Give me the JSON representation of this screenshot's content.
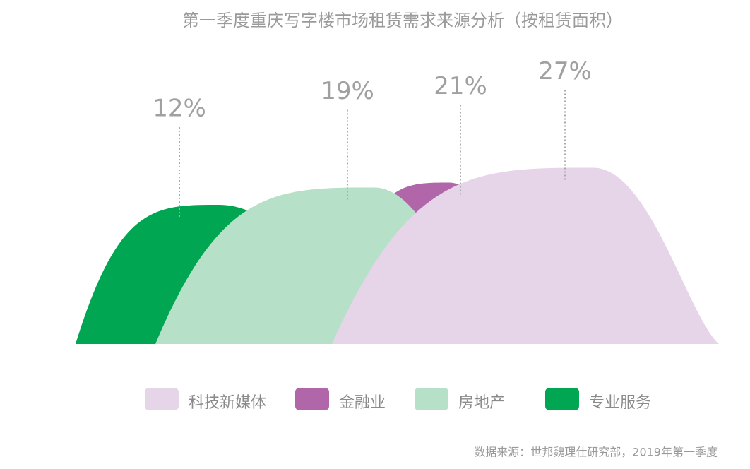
{
  "chart_data": {
    "type": "hill",
    "title": "第一季度重庆写字楼市场租赁需求来源分析（按租赁面积）",
    "categories": [
      "科技新媒体",
      "金融业",
      "房地产",
      "专业服务"
    ],
    "values": [
      27,
      21,
      19,
      12
    ],
    "value_labels": [
      "27%",
      "21%",
      "19%",
      "12%"
    ],
    "colors": [
      "#e6d4e8",
      "#b066a8",
      "#b6e0c7",
      "#00a651"
    ],
    "source": "数据来源：世邦魏理仕研究部，2019年第一季度"
  }
}
